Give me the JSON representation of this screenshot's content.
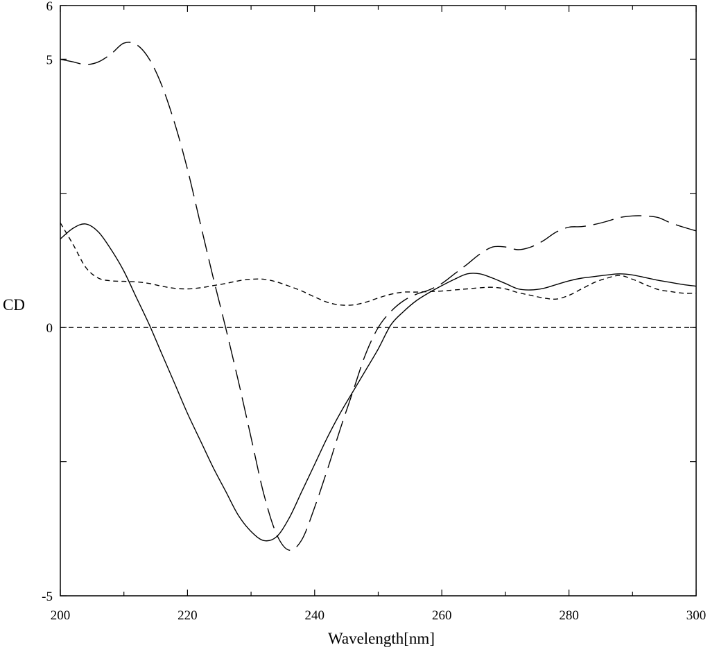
{
  "chart_data": {
    "type": "line",
    "xlabel": "Wavelength[nm]",
    "ylabel": "CD",
    "xlim": [
      200,
      300
    ],
    "ylim": [
      -5,
      6
    ],
    "x_major_ticks": [
      200,
      220,
      240,
      260,
      280,
      300
    ],
    "y_labeled_ticks": [
      6,
      5,
      0,
      -5
    ],
    "y_unlabeled_ticks": [
      2.5,
      -2.5
    ],
    "grid": false,
    "legend": "none",
    "zero_line": {
      "y": 0,
      "style": "dashed"
    },
    "series": [
      {
        "style": "solid",
        "points": [
          [
            200,
            1.65
          ],
          [
            202,
            1.85
          ],
          [
            204,
            1.93
          ],
          [
            206,
            1.78
          ],
          [
            208,
            1.45
          ],
          [
            210,
            1.05
          ],
          [
            212,
            0.55
          ],
          [
            214,
            0.05
          ],
          [
            216,
            -0.5
          ],
          [
            218,
            -1.05
          ],
          [
            220,
            -1.6
          ],
          [
            222,
            -2.1
          ],
          [
            224,
            -2.6
          ],
          [
            226,
            -3.05
          ],
          [
            228,
            -3.5
          ],
          [
            230,
            -3.8
          ],
          [
            232,
            -3.97
          ],
          [
            234,
            -3.9
          ],
          [
            236,
            -3.55
          ],
          [
            238,
            -3.05
          ],
          [
            240,
            -2.55
          ],
          [
            242,
            -2.05
          ],
          [
            244,
            -1.6
          ],
          [
            246,
            -1.2
          ],
          [
            248,
            -0.8
          ],
          [
            250,
            -0.4
          ],
          [
            252,
            0.05
          ],
          [
            254,
            0.3
          ],
          [
            256,
            0.5
          ],
          [
            258,
            0.65
          ],
          [
            260,
            0.78
          ],
          [
            262,
            0.9
          ],
          [
            264,
            1.0
          ],
          [
            266,
            1.0
          ],
          [
            268,
            0.92
          ],
          [
            270,
            0.82
          ],
          [
            272,
            0.72
          ],
          [
            274,
            0.7
          ],
          [
            276,
            0.73
          ],
          [
            278,
            0.8
          ],
          [
            280,
            0.87
          ],
          [
            282,
            0.92
          ],
          [
            284,
            0.95
          ],
          [
            286,
            0.98
          ],
          [
            288,
            1.0
          ],
          [
            290,
            0.98
          ],
          [
            292,
            0.93
          ],
          [
            294,
            0.88
          ],
          [
            296,
            0.84
          ],
          [
            298,
            0.8
          ],
          [
            300,
            0.77
          ]
        ]
      },
      {
        "style": "long-dash",
        "points": [
          [
            200,
            5.0
          ],
          [
            202,
            4.95
          ],
          [
            204,
            4.9
          ],
          [
            206,
            4.95
          ],
          [
            208,
            5.1
          ],
          [
            210,
            5.3
          ],
          [
            212,
            5.27
          ],
          [
            214,
            5.0
          ],
          [
            216,
            4.5
          ],
          [
            218,
            3.8
          ],
          [
            220,
            2.95
          ],
          [
            222,
            1.95
          ],
          [
            224,
            0.95
          ],
          [
            226,
            0.0
          ],
          [
            228,
            -1.0
          ],
          [
            230,
            -2.05
          ],
          [
            232,
            -3.1
          ],
          [
            234,
            -3.85
          ],
          [
            236,
            -4.15
          ],
          [
            238,
            -3.95
          ],
          [
            240,
            -3.35
          ],
          [
            242,
            -2.65
          ],
          [
            244,
            -1.9
          ],
          [
            246,
            -1.2
          ],
          [
            248,
            -0.5
          ],
          [
            250,
            0.0
          ],
          [
            252,
            0.3
          ],
          [
            254,
            0.5
          ],
          [
            256,
            0.62
          ],
          [
            258,
            0.7
          ],
          [
            260,
            0.82
          ],
          [
            262,
            1.0
          ],
          [
            264,
            1.18
          ],
          [
            266,
            1.37
          ],
          [
            268,
            1.5
          ],
          [
            270,
            1.5
          ],
          [
            272,
            1.45
          ],
          [
            274,
            1.5
          ],
          [
            276,
            1.62
          ],
          [
            278,
            1.78
          ],
          [
            280,
            1.87
          ],
          [
            282,
            1.88
          ],
          [
            284,
            1.92
          ],
          [
            286,
            1.98
          ],
          [
            288,
            2.05
          ],
          [
            290,
            2.08
          ],
          [
            292,
            2.08
          ],
          [
            294,
            2.05
          ],
          [
            296,
            1.95
          ],
          [
            298,
            1.87
          ],
          [
            300,
            1.8
          ]
        ]
      },
      {
        "style": "short-dash",
        "points": [
          [
            200,
            1.95
          ],
          [
            202,
            1.55
          ],
          [
            204,
            1.12
          ],
          [
            206,
            0.92
          ],
          [
            208,
            0.87
          ],
          [
            210,
            0.86
          ],
          [
            212,
            0.85
          ],
          [
            214,
            0.82
          ],
          [
            216,
            0.77
          ],
          [
            218,
            0.73
          ],
          [
            220,
            0.72
          ],
          [
            222,
            0.74
          ],
          [
            224,
            0.78
          ],
          [
            226,
            0.82
          ],
          [
            228,
            0.87
          ],
          [
            230,
            0.9
          ],
          [
            232,
            0.9
          ],
          [
            234,
            0.85
          ],
          [
            236,
            0.77
          ],
          [
            238,
            0.68
          ],
          [
            240,
            0.57
          ],
          [
            242,
            0.47
          ],
          [
            244,
            0.42
          ],
          [
            246,
            0.42
          ],
          [
            248,
            0.47
          ],
          [
            250,
            0.55
          ],
          [
            252,
            0.62
          ],
          [
            254,
            0.66
          ],
          [
            256,
            0.66
          ],
          [
            258,
            0.67
          ],
          [
            260,
            0.68
          ],
          [
            262,
            0.7
          ],
          [
            264,
            0.72
          ],
          [
            266,
            0.74
          ],
          [
            268,
            0.75
          ],
          [
            270,
            0.72
          ],
          [
            272,
            0.65
          ],
          [
            274,
            0.6
          ],
          [
            276,
            0.55
          ],
          [
            278,
            0.53
          ],
          [
            280,
            0.6
          ],
          [
            282,
            0.72
          ],
          [
            284,
            0.84
          ],
          [
            286,
            0.92
          ],
          [
            288,
            0.97
          ],
          [
            290,
            0.9
          ],
          [
            292,
            0.8
          ],
          [
            294,
            0.71
          ],
          [
            296,
            0.67
          ],
          [
            298,
            0.64
          ],
          [
            300,
            0.64
          ]
        ]
      }
    ]
  }
}
